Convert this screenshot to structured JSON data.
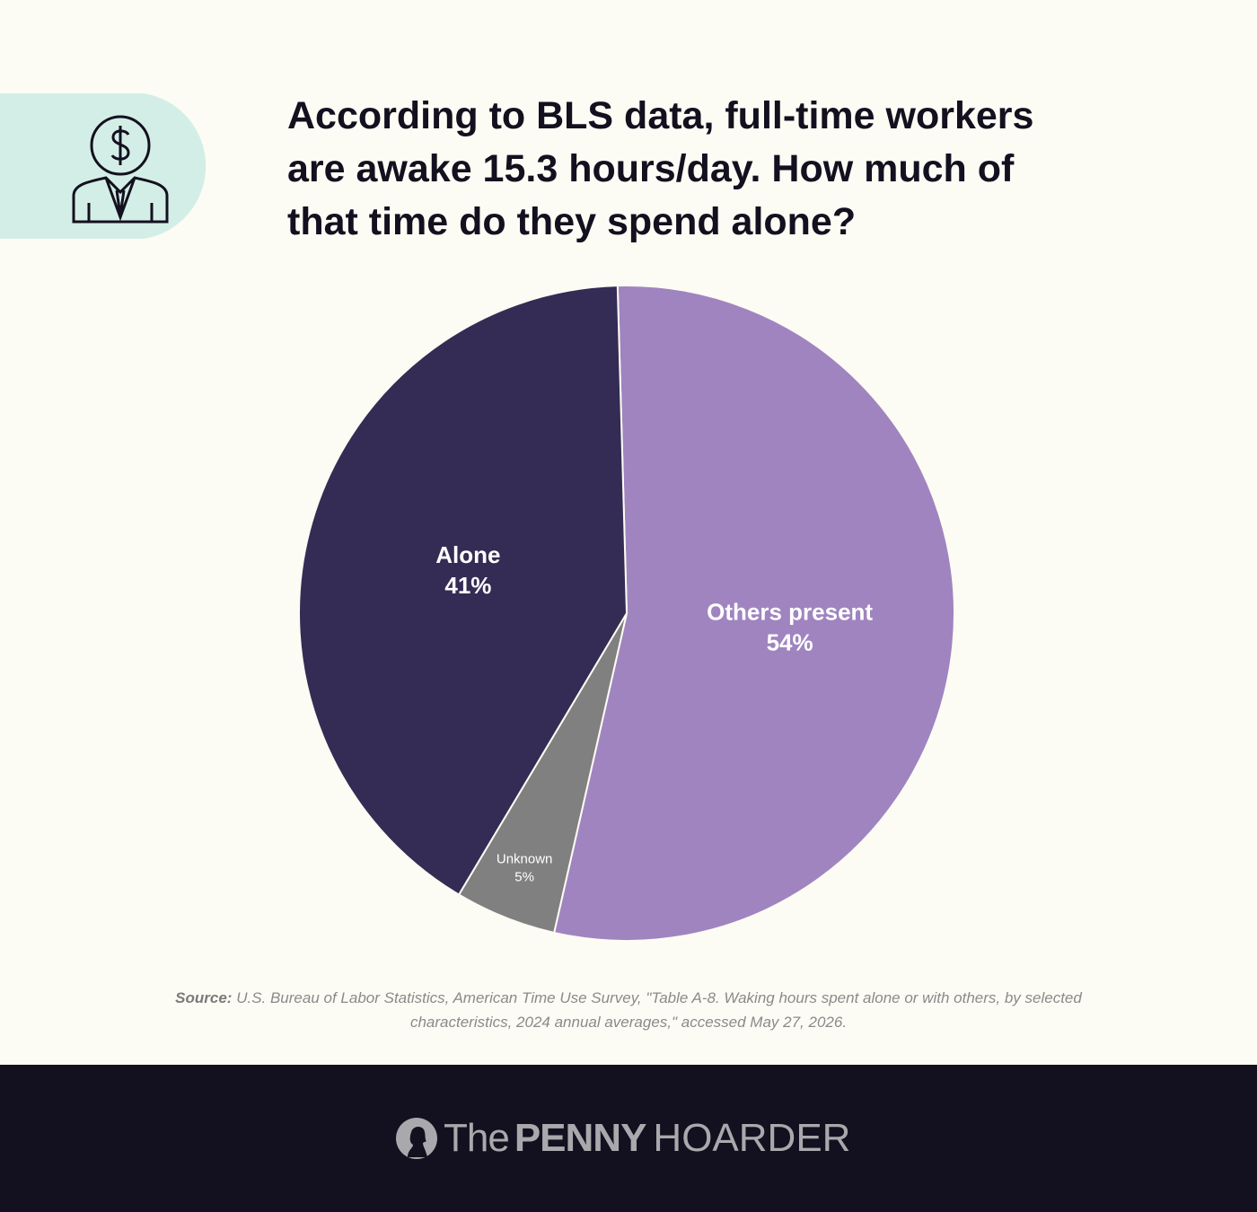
{
  "chart_data": {
    "type": "pie",
    "title": "According to BLS data, full-time workers are awake 15.3 hours/day. How much of that time do they spend alone?",
    "categories": [
      "Others present",
      "Unknown",
      "Alone"
    ],
    "values": [
      54,
      5,
      41
    ],
    "value_labels": [
      "54%",
      "5%",
      "41%"
    ],
    "colors": [
      "#a084c0",
      "#808080",
      "#342c54"
    ],
    "source_label": "Source:",
    "source": "U.S. Bureau of Labor Statistics, American Time Use Survey, \"Table A-8. Waking hours spent alone or with others, by selected characteristics, 2024 annual averages,\" accessed May 27, 2026."
  },
  "footer": {
    "logo": [
      "The",
      "PENNY",
      "HOARDER"
    ]
  }
}
